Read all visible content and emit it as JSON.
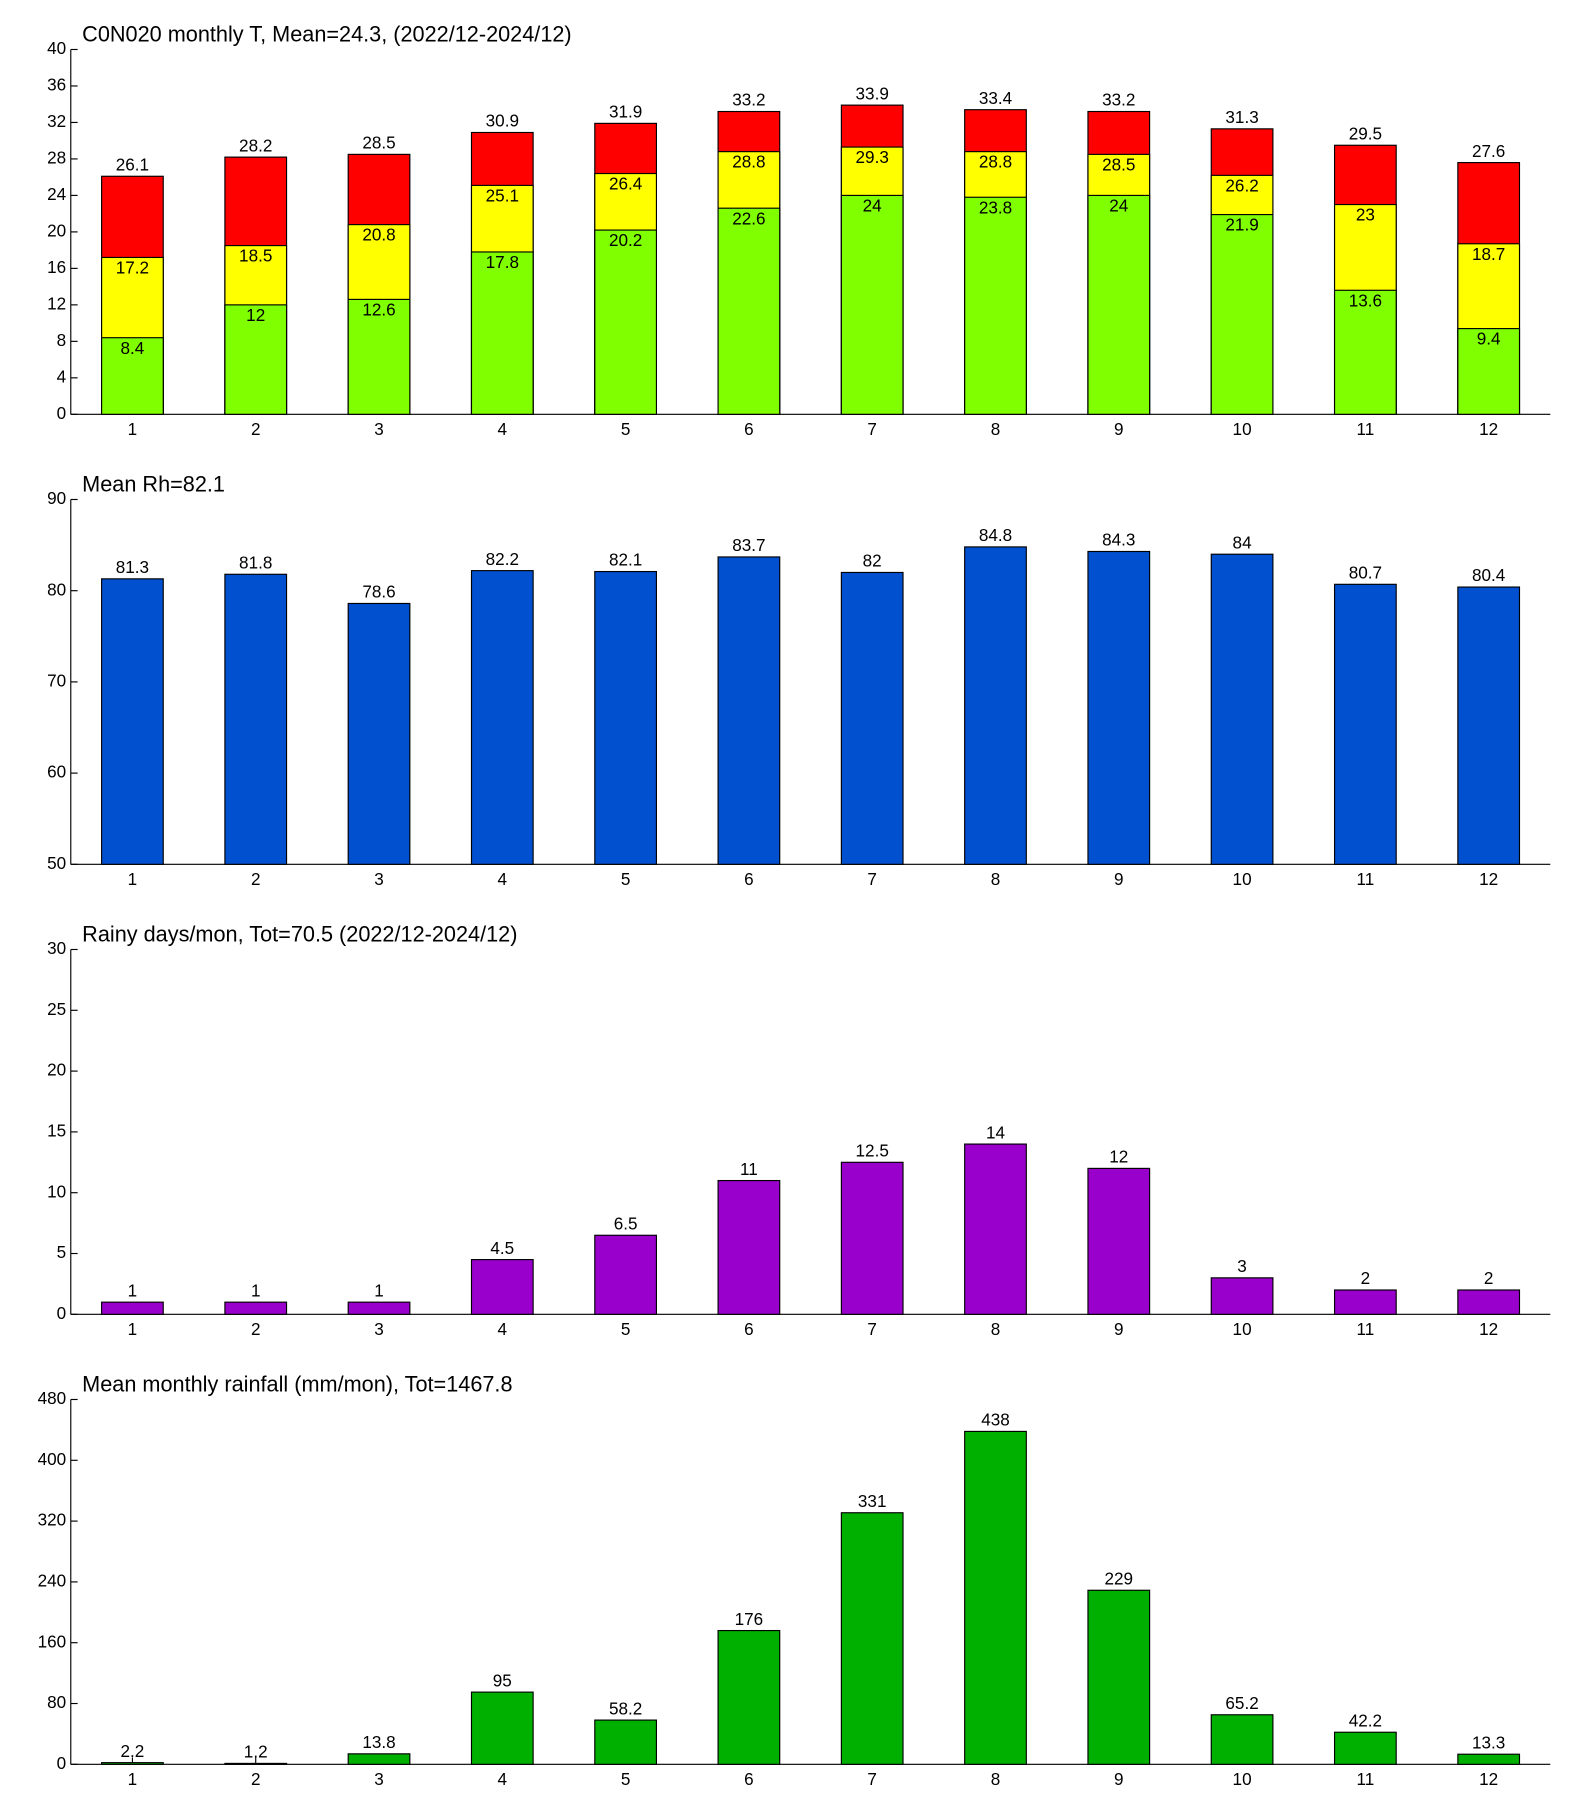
{
  "chart_data": [
    {
      "type": "bar",
      "title": "C0N020 monthly T, Mean=24.3, (2022/12-2024/12)",
      "categories": [
        "1",
        "2",
        "3",
        "4",
        "5",
        "6",
        "7",
        "8",
        "9",
        "10",
        "11",
        "12"
      ],
      "series": [
        {
          "color": "#ff0000",
          "values": [
            26.1,
            28.2,
            28.5,
            30.9,
            31.9,
            33.2,
            33.9,
            33.4,
            33.2,
            31.3,
            29.5,
            27.6
          ]
        },
        {
          "color": "#ffff00",
          "values": [
            17.2,
            18.5,
            20.8,
            25.1,
            26.4,
            28.8,
            29.3,
            28.8,
            28.5,
            26.2,
            23,
            18.7
          ]
        },
        {
          "color": "#80ff00",
          "values": [
            8.4,
            12,
            12.6,
            17.8,
            20.2,
            22.6,
            24,
            23.8,
            24,
            21.9,
            13.6,
            9.4
          ]
        }
      ],
      "ylim": [
        0,
        40
      ],
      "yticks": [
        0,
        4,
        8,
        12,
        16,
        20,
        24,
        28,
        32,
        36,
        40
      ]
    },
    {
      "type": "bar",
      "title": "Mean Rh=82.1",
      "categories": [
        "1",
        "2",
        "3",
        "4",
        "5",
        "6",
        "7",
        "8",
        "9",
        "10",
        "11",
        "12"
      ],
      "series": [
        {
          "color": "#0050d0",
          "values": [
            81.3,
            81.8,
            78.6,
            82.2,
            82.1,
            83.7,
            82,
            84.8,
            84.3,
            84,
            80.7,
            80.4
          ]
        }
      ],
      "ylim": [
        50,
        90
      ],
      "yticks": [
        50,
        60,
        70,
        80,
        90
      ]
    },
    {
      "type": "bar",
      "title": "Rainy days/mon, Tot=70.5 (2022/12-2024/12)",
      "categories": [
        "1",
        "2",
        "3",
        "4",
        "5",
        "6",
        "7",
        "8",
        "9",
        "10",
        "11",
        "12"
      ],
      "series": [
        {
          "color": "#9900cc",
          "values": [
            1,
            1,
            1,
            4.5,
            6.5,
            11,
            12.5,
            14,
            12,
            3,
            2,
            2
          ]
        }
      ],
      "ylim": [
        0,
        30
      ],
      "yticks": [
        0,
        5,
        10,
        15,
        20,
        25,
        30
      ]
    },
    {
      "type": "bar",
      "title": "Mean monthly rainfall (mm/mon), Tot=1467.8",
      "categories": [
        "1",
        "2",
        "3",
        "4",
        "5",
        "6",
        "7",
        "8",
        "9",
        "10",
        "11",
        "12"
      ],
      "series": [
        {
          "color": "#00b000",
          "values": [
            2.2,
            1.2,
            13.8,
            95,
            58.2,
            176,
            331,
            438,
            229,
            65.2,
            42.2,
            13.3
          ]
        }
      ],
      "ylim": [
        0,
        480
      ],
      "yticks": [
        0,
        80,
        160,
        240,
        320,
        400,
        480
      ]
    }
  ]
}
